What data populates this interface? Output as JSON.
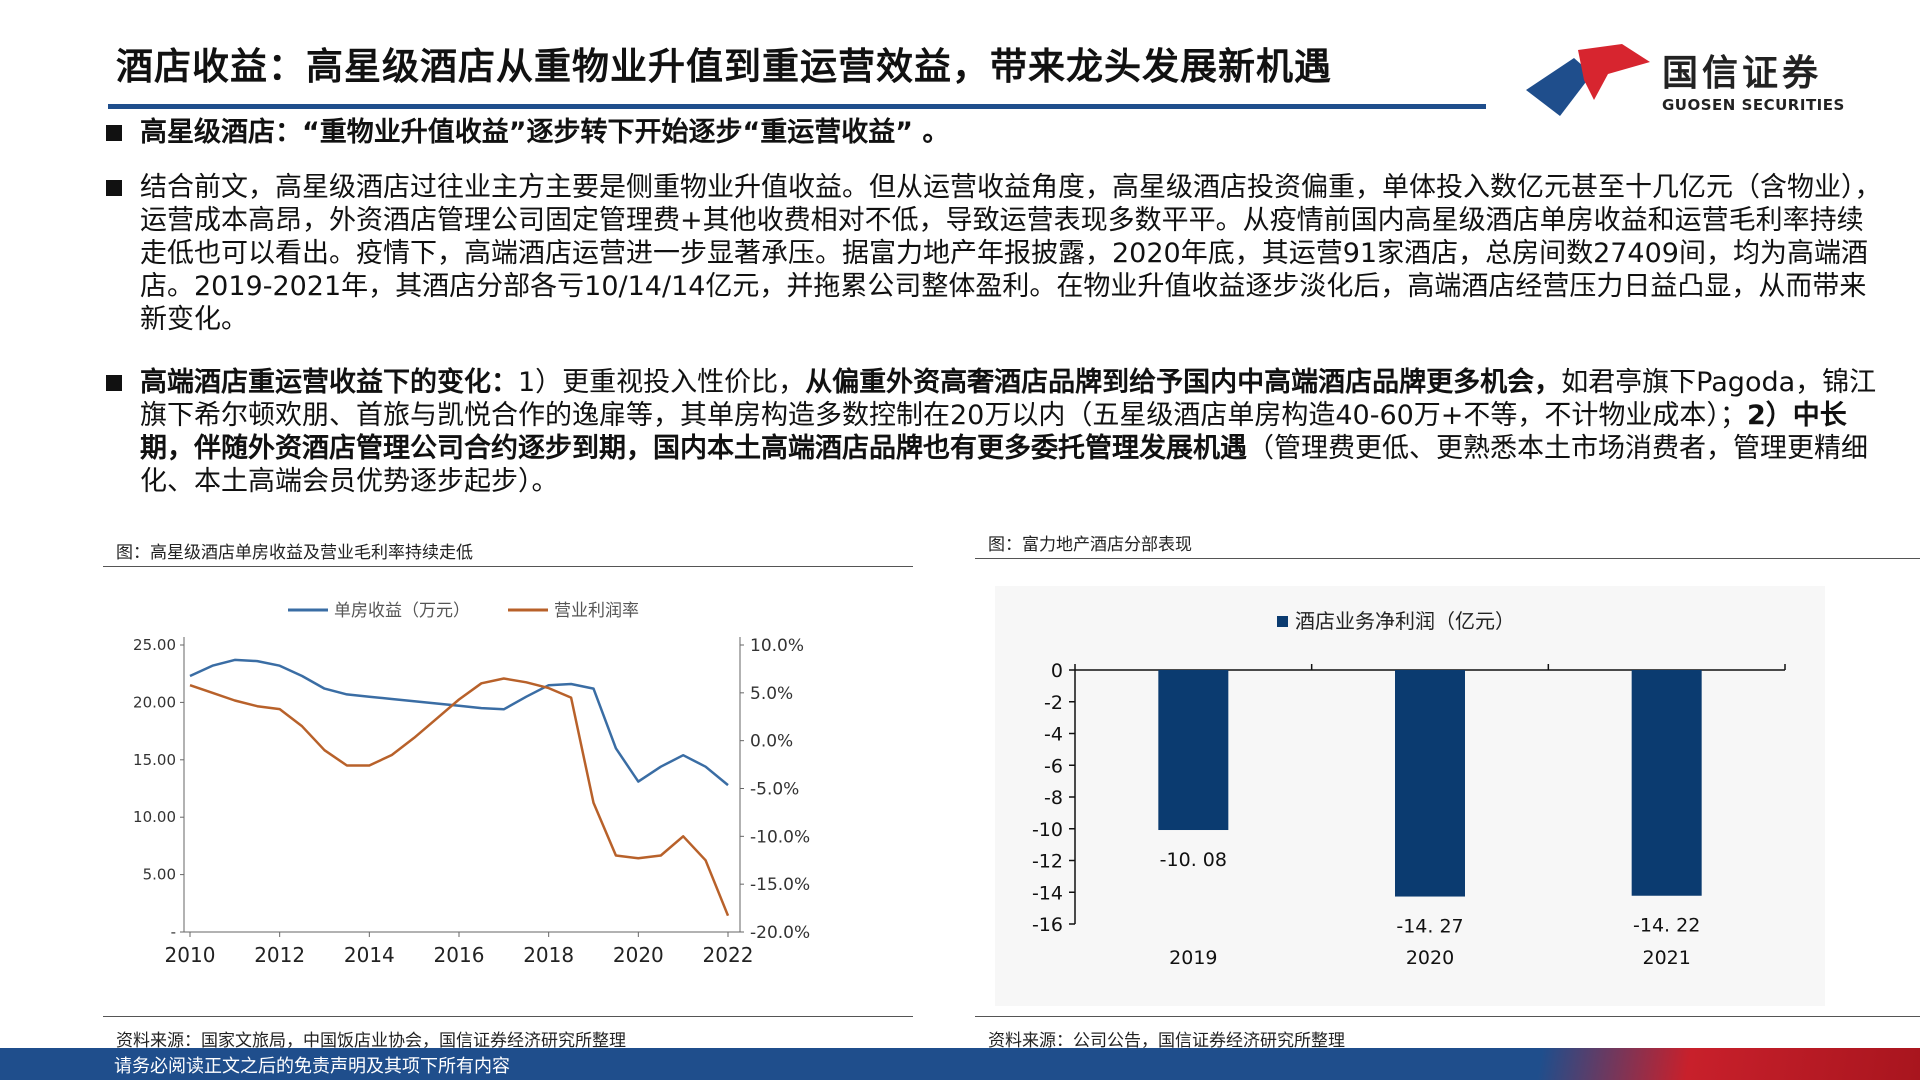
{
  "header": {
    "title": "酒店收益：高星级酒店从重物业升值到重运营效益，带来龙头发展新机遇",
    "logo_cn": "国信证券",
    "logo_en": "GUOSEN SECURITIES"
  },
  "bullets": [
    {
      "parts": [
        {
          "text": "高星级酒店：“重物业升值收益”逐步转下开始逐步“重运营收益” 。",
          "bold": true
        }
      ]
    },
    {
      "parts": [
        {
          "text": "结合前文，高星级酒店过往业主方主要是侧重物业升值收益。但从运营收益角度，高星级酒店投资偏重，单体投入数亿元甚至十几亿元（含物业），运营成本高昂，外资酒店管理公司固定管理费+其他收费相对不低，导致运营表现多数平平。从疫情前国内高星级酒店单房收益和运营毛利率持续走低也可以看出。疫情下，高端酒店运营进一步显著承压。据富力地产年报披露，2020年底，其运营91家酒店，总房间数27409间，均为高端酒店。2019-2021年，其酒店分部各亏10/14/14亿元，并拖累公司整体盈利。在物业升值收益逐步淡化后，高端酒店经营压力日益凸显，从而带来新变化。",
          "bold": false
        }
      ]
    },
    {
      "parts": [
        {
          "text": "高端酒店重运营收益下的变化：",
          "bold": true
        },
        {
          "text": "1）更重视投入性价比，",
          "bold": false
        },
        {
          "text": "从偏重外资高奢酒店品牌到给予国内中高端酒店品牌更多机会，",
          "bold": true
        },
        {
          "text": "如君亭旗下Pagoda，锦江旗下希尔顿欢朋、首旅与凯悦合作的逸扉等，其单房构造多数控制在20万以内（五星级酒店单房构造40-60万+不等，不计物业成本）；",
          "bold": false
        },
        {
          "text": "2）中长期，伴随外资酒店管理公司合约逐步到期，国内本土高端酒店品牌也有更多委托管理发展机遇",
          "bold": true
        },
        {
          "text": "（管理费更低、更熟悉本土市场消费者，管理更精细化、本土高端会员优势逐步起步）。",
          "bold": false
        }
      ]
    }
  ],
  "left_figure": {
    "caption": "图：高星级酒店单房收益及营业毛利率持续走低",
    "source": "资料来源：国家文旅局，中国饭店业协会，国信证券经济研究所整理"
  },
  "right_figure": {
    "caption": "图：富力地产酒店分部表现",
    "source": "资料来源：公司公告，国信证券经济研究所整理"
  },
  "footer": {
    "disclaimer": "请务必阅读正文之后的免责声明及其项下所有内容"
  },
  "colors": {
    "brand_blue": "#1f4e8c",
    "line_revenue": "#3a6da4",
    "line_margin": "#b8612a",
    "bar": "#0b3b70"
  },
  "chart_data": [
    {
      "type": "line",
      "x_ticks": [
        "2010",
        "2012",
        "2014",
        "2016",
        "2018",
        "2020",
        "2022"
      ],
      "series": [
        {
          "name": "单房收益（万元）",
          "axis": "left",
          "x": [
            2010,
            2010.5,
            2011,
            2011.5,
            2012,
            2012.5,
            2013,
            2013.5,
            2014,
            2014.5,
            2015,
            2015.5,
            2016,
            2016.5,
            2017,
            2017.5,
            2018,
            2018.5,
            2019,
            2019.5,
            2020,
            2020.5,
            2021,
            2021.5,
            2022
          ],
          "values": [
            22.3,
            23.2,
            23.7,
            23.6,
            23.2,
            22.3,
            21.2,
            20.7,
            20.5,
            20.3,
            20.1,
            19.9,
            19.7,
            19.5,
            19.4,
            20.5,
            21.5,
            21.6,
            21.2,
            16.0,
            13.1,
            14.4,
            15.4,
            14.4,
            12.8
          ]
        },
        {
          "name": "营业利润率",
          "axis": "right",
          "unit": "%",
          "x": [
            2010,
            2010.5,
            2011,
            2011.5,
            2012,
            2012.5,
            2013,
            2013.5,
            2014,
            2014.5,
            2015,
            2015.5,
            2016,
            2016.5,
            2017,
            2017.5,
            2018,
            2018.5,
            2019,
            2019.5,
            2020,
            2020.5,
            2021,
            2021.5,
            2022
          ],
          "values": [
            5.8,
            5.0,
            4.2,
            3.6,
            3.3,
            1.5,
            -1.0,
            -2.6,
            -2.6,
            -1.5,
            0.3,
            2.3,
            4.3,
            6.0,
            6.5,
            6.1,
            5.5,
            4.5,
            -6.5,
            -12.0,
            -12.3,
            -12.0,
            -10.0,
            -12.5,
            -18.3
          ]
        }
      ],
      "y_left": {
        "ticks": [
          "-",
          "5.00",
          "10.00",
          "15.00",
          "20.00",
          "25.00"
        ],
        "tick_values": [
          0,
          5,
          10,
          15,
          20,
          25
        ],
        "range": [
          0,
          25
        ]
      },
      "y_right": {
        "ticks": [
          "-20.0%",
          "-15.0%",
          "-10.0%",
          "-5.0%",
          "0.0%",
          "5.0%",
          "10.0%"
        ],
        "tick_values": [
          -20,
          -15,
          -10,
          -5,
          0,
          5,
          10
        ],
        "range": [
          -20,
          10
        ]
      },
      "x_range": [
        2010,
        2022
      ],
      "legend_position": "top-center",
      "grid": false
    },
    {
      "type": "bar",
      "legend": "酒店业务净利润（亿元）",
      "categories": [
        "2019",
        "2020",
        "2021"
      ],
      "values": [
        -10.08,
        -14.27,
        -14.22
      ],
      "data_labels": [
        "-10. 08",
        "-14. 27",
        "-14. 22"
      ],
      "y_ticks": [
        "0",
        "-2",
        "-4",
        "-6",
        "-8",
        "-10",
        "-12",
        "-14",
        "-16"
      ],
      "y_tick_values": [
        0,
        -2,
        -4,
        -6,
        -8,
        -10,
        -12,
        -14,
        -16
      ],
      "ylim": [
        -16,
        0
      ],
      "legend_position": "top-center",
      "grid": false
    }
  ]
}
